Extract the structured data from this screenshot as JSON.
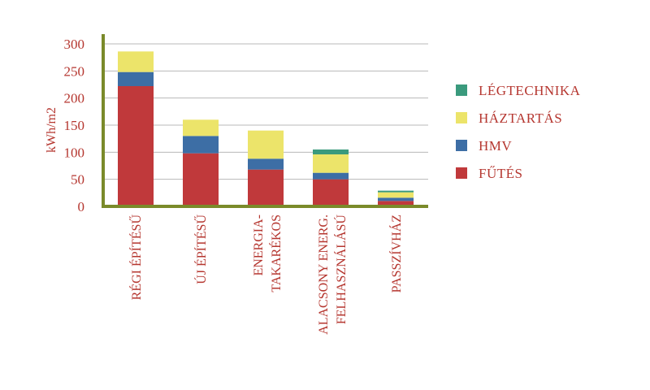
{
  "chart_data": {
    "type": "bar",
    "stacked": true,
    "ylabel": "kWh/m2",
    "ylim": [
      0,
      300
    ],
    "yticks": [
      0,
      50,
      100,
      150,
      200,
      250,
      300
    ],
    "grid": true,
    "legend_position": "right",
    "categories": [
      [
        "RÉGI ÉPÍTÉSŰ"
      ],
      [
        "ÚJ ÉPÍTÉSŰ"
      ],
      [
        "ENERGIA-",
        "TAKARÉKOS"
      ],
      [
        "ALACSONY ENERG.",
        "FELHASZNÁLÁSÚ"
      ],
      [
        "PASSZÍVHÁZ"
      ]
    ],
    "series": [
      {
        "name": "FŰTÉS",
        "color": "#c0393b",
        "values": [
          222,
          98,
          68,
          50,
          10
        ]
      },
      {
        "name": "HMV",
        "color": "#3d6ea5",
        "values": [
          26,
          32,
          20,
          12,
          6
        ]
      },
      {
        "name": "HÁZTARTÁS",
        "color": "#ece46a",
        "values": [
          38,
          30,
          52,
          34,
          10
        ]
      },
      {
        "name": "LÉGTECHNIKA",
        "color": "#3a9a7d",
        "values": [
          0,
          0,
          0,
          9,
          3
        ]
      }
    ],
    "legend_order": [
      "LÉGTECHNIKA",
      "HÁZTARTÁS",
      "HMV",
      "FŰTÉS"
    ],
    "axis_color": "#7a8a2a",
    "text_color": "#b5362f"
  }
}
